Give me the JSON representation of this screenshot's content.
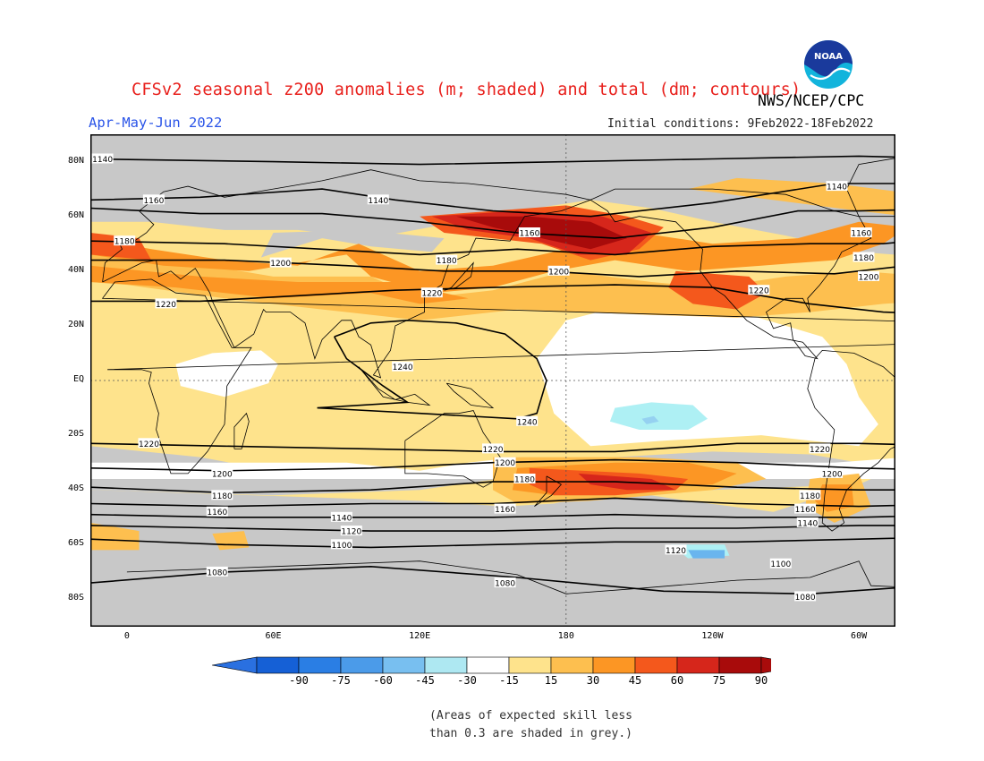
{
  "header": {
    "title": "CFSv2 seasonal z200 anomalies (m; shaded) and total (dm; contours)",
    "agency": "NWS/NCEP/CPC",
    "season": "Apr-May-Jun 2022",
    "initial_conditions": "Initial conditions: 9Feb2022-18Feb2022",
    "logo_text": "NOAA"
  },
  "map": {
    "lat_labels": [
      "80N",
      "60N",
      "40N",
      "20N",
      "EQ",
      "20S",
      "40S",
      "60S",
      "80S"
    ],
    "lon_labels": [
      "0",
      "60E",
      "120E",
      "180",
      "120W",
      "60W",
      "0"
    ],
    "colors": {
      "land_outline": "#000000",
      "grid": "#555555",
      "grey_low_skill": "#c8c8c8",
      "neutral": "#ffffff",
      "c15_30": "#fee38c",
      "c30_45": "#fdbf4f",
      "c45_60": "#fc9624",
      "c60_75": "#f4581c",
      "c75_90": "#d6261b",
      "c90": "#a80b0b",
      "n15_30": "#aef0f4",
      "n30_45": "#95d1f1",
      "n45_60": "#69b5ee"
    },
    "contour_labels": [
      {
        "text": "1140",
        "lon": -10,
        "lat": 81
      },
      {
        "text": "1160",
        "lon": 11,
        "lat": 66
      },
      {
        "text": "1140",
        "lon": 103,
        "lat": 66
      },
      {
        "text": "1140",
        "lon": -69,
        "lat": 71
      },
      {
        "text": "1180",
        "lon": -1,
        "lat": 51
      },
      {
        "text": "1200",
        "lon": 63,
        "lat": 43
      },
      {
        "text": "1180",
        "lon": 131,
        "lat": 44
      },
      {
        "text": "1160",
        "lon": 165,
        "lat": 54
      },
      {
        "text": "1200",
        "lon": 177,
        "lat": 40
      },
      {
        "text": "1220",
        "lon": 125,
        "lat": 32
      },
      {
        "text": "1220",
        "lon": -101,
        "lat": 33
      },
      {
        "text": "1160",
        "lon": -59,
        "lat": 54
      },
      {
        "text": "1180",
        "lon": -58,
        "lat": 45
      },
      {
        "text": "1200",
        "lon": -56,
        "lat": 38
      },
      {
        "text": "1220",
        "lon": 16,
        "lat": 28
      },
      {
        "text": "1240",
        "lon": 113,
        "lat": 5
      },
      {
        "text": "1240",
        "lon": 164,
        "lat": -15
      },
      {
        "text": "1220",
        "lon": 9,
        "lat": -23
      },
      {
        "text": "1220",
        "lon": 150,
        "lat": -25
      },
      {
        "text": "1200",
        "lon": 155,
        "lat": -30
      },
      {
        "text": "1180",
        "lon": 163,
        "lat": -36
      },
      {
        "text": "1220",
        "lon": -76,
        "lat": -25
      },
      {
        "text": "1200",
        "lon": -71,
        "lat": -34
      },
      {
        "text": "1200",
        "lon": 39,
        "lat": -34
      },
      {
        "text": "1180",
        "lon": 39,
        "lat": -42
      },
      {
        "text": "1160",
        "lon": 37,
        "lat": -48
      },
      {
        "text": "1180",
        "lon": -80,
        "lat": -42
      },
      {
        "text": "1160",
        "lon": -82,
        "lat": -47
      },
      {
        "text": "1160",
        "lon": 155,
        "lat": -47
      },
      {
        "text": "1140",
        "lon": 88,
        "lat": -50
      },
      {
        "text": "1140",
        "lon": -81,
        "lat": -52
      },
      {
        "text": "1120",
        "lon": 92,
        "lat": -55
      },
      {
        "text": "1100",
        "lon": 88,
        "lat": -60
      },
      {
        "text": "1120",
        "lon": -135,
        "lat": -62
      },
      {
        "text": "1100",
        "lon": -92,
        "lat": -67
      },
      {
        "text": "1080",
        "lon": 37,
        "lat": -70
      },
      {
        "text": "1080",
        "lon": 155,
        "lat": -74
      },
      {
        "text": "1080",
        "lon": -82,
        "lat": -79
      }
    ]
  },
  "colorbar": {
    "labels": [
      "-90",
      "-75",
      "-60",
      "-45",
      "-30",
      "-15",
      "15",
      "30",
      "45",
      "60",
      "75",
      "90"
    ],
    "colors": [
      "#1560d6",
      "#2a7ee4",
      "#4b9be9",
      "#78bff0",
      "#aee8f2",
      "#ffffff",
      "#fee38c",
      "#fdbf4f",
      "#fc9624",
      "#f4581c",
      "#d6261b",
      "#a80b0b"
    ],
    "under_color": "#2a70e0",
    "over_color": "#a80b0b"
  },
  "footnote": {
    "line1": "(Areas of expected skill less",
    "line2": "than 0.3 are shaded in grey.)"
  }
}
